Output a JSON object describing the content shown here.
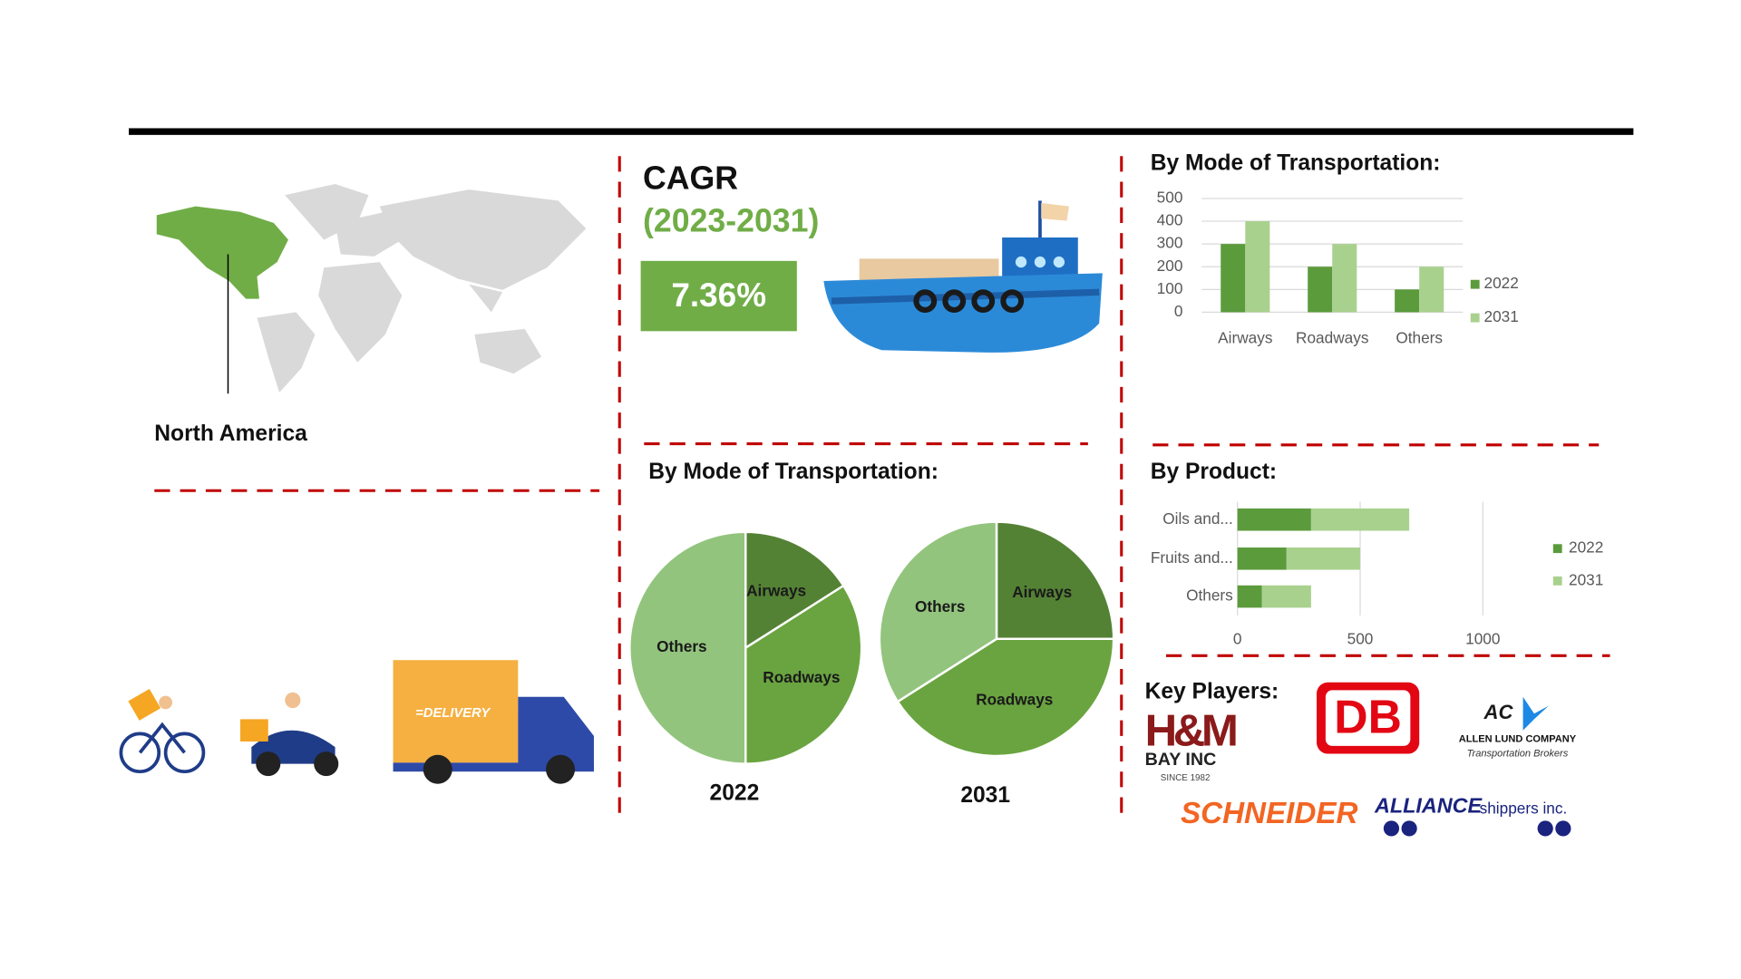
{
  "region": {
    "label": "North America"
  },
  "cagr": {
    "title": "CAGR",
    "period": "(2023-2031)",
    "value": "7.36%"
  },
  "mode_bar": {
    "type": "bar",
    "title": "By Mode of Transportation:",
    "categories": [
      "Airways",
      "Roadways",
      "Others"
    ],
    "series": [
      {
        "name": "2022",
        "color": "#5b9b3c",
        "values": [
          300,
          200,
          100
        ]
      },
      {
        "name": "2031",
        "color": "#a9d18e",
        "values": [
          400,
          300,
          200
        ]
      }
    ],
    "ylim": [
      0,
      500
    ],
    "yticks": [
      0,
      100,
      200,
      300,
      400,
      500
    ],
    "grid": true,
    "legend": "right"
  },
  "mode_pie": {
    "type": "pie",
    "title": "By Mode of Transportation:",
    "categories": [
      "Airways",
      "Roadways",
      "Others"
    ],
    "colors": [
      "#548235",
      "#6aa440",
      "#93c47d"
    ],
    "series": [
      {
        "name": "2022",
        "values": [
          16,
          34,
          50
        ]
      },
      {
        "name": "2031",
        "values": [
          25,
          41,
          34
        ]
      }
    ]
  },
  "product_bar": {
    "type": "stacked-barh",
    "title": "By Product:",
    "categories": [
      "Oils and...",
      "Fruits and...",
      "Others"
    ],
    "series": [
      {
        "name": "2022",
        "color": "#5b9b3c",
        "values": [
          300,
          200,
          100
        ]
      },
      {
        "name": "2031",
        "color": "#a9d18e",
        "values": [
          400,
          300,
          200
        ]
      }
    ],
    "xlim": [
      0,
      1000
    ],
    "xticks": [
      0,
      500,
      1000
    ],
    "grid": true,
    "legend": "right"
  },
  "key_players": {
    "title": "Key Players:",
    "logos": [
      {
        "name": "H&M",
        "sub": "BAY INC",
        "note": "SINCE 1982"
      },
      {
        "name": "DB"
      },
      {
        "name": "AC",
        "sub": "ALLEN LUND COMPANY",
        "note": "Transportation Brokers"
      },
      {
        "name": "SCHNEIDER"
      },
      {
        "name": "ALLIANCE",
        "sub": "shippers inc."
      }
    ]
  }
}
